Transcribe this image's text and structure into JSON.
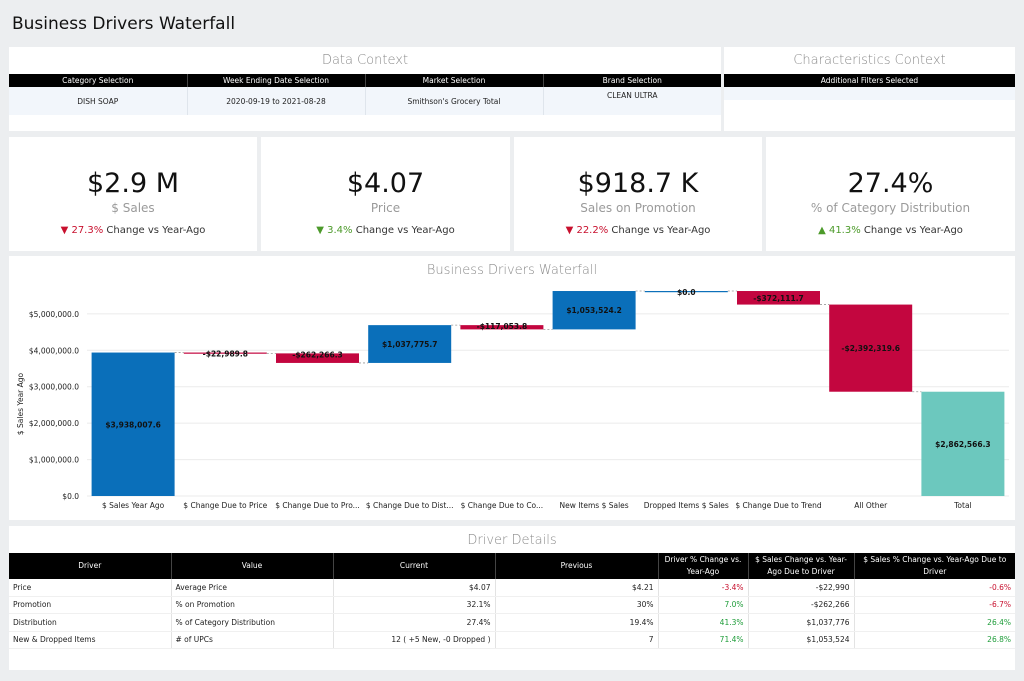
{
  "page": {
    "title": "Business Drivers Waterfall"
  },
  "data_context": {
    "title": "Data Context",
    "headers": [
      "Category Selection",
      "Week Ending Date Selection",
      "Market Selection",
      "Brand Selection"
    ],
    "values": [
      "DISH SOAP",
      "2020-09-19 to 2021-08-28",
      "Smithson's Grocery Total",
      "CLEAN ULTRA"
    ]
  },
  "characteristics_context": {
    "title": "Characteristics Context",
    "header": "Additional Filters Selected"
  },
  "kpis": [
    {
      "value": "$2.9 M",
      "label": "$ Sales",
      "arrow": "▼",
      "change": "27.3%",
      "suffix": " Change vs Year-Ago",
      "direction": "down"
    },
    {
      "value": "$4.07",
      "label": "Price",
      "arrow": "▼",
      "change": "3.4%",
      "suffix": " Change vs Year-Ago",
      "direction": "up"
    },
    {
      "value": "$918.7 K",
      "label": "Sales on Promotion",
      "arrow": "▼",
      "change": "22.2%",
      "suffix": " Change vs Year-Ago",
      "direction": "down"
    },
    {
      "value": "27.4%",
      "label": "% of Category Distribution",
      "arrow": "▲",
      "change": "41.3%",
      "suffix": " Change vs Year-Ago",
      "direction": "up"
    }
  ],
  "colors": {
    "increase": "#0a6fba",
    "decrease": "#c3063f",
    "total": "#6cc8be",
    "down_text": "#c8102e",
    "up_text": "#4c9a2a"
  },
  "chart_data": {
    "type": "bar",
    "subtype": "waterfall",
    "title": "Business Drivers Waterfall",
    "ylabel": "$ Sales Year Ago",
    "ylim": [
      0,
      5600000
    ],
    "ytick_values": [
      0,
      1000000,
      2000000,
      3000000,
      4000000,
      5000000
    ],
    "ytick_labels": [
      "$0.0",
      "$1,000,000.0",
      "$2,000,000.0",
      "$3,000,000.0",
      "$4,000,000.0",
      "$5,000,000.0"
    ],
    "categories": [
      "$ Sales Year Ago",
      "$ Change Due to Price",
      "$ Change Due to Pro...",
      "$ Change Due to Dist...",
      "$ Change Due to Co...",
      "New Items $ Sales",
      "Dropped Items $ Sales",
      "$ Change Due to Trend",
      "All Other",
      "Total"
    ],
    "values": [
      3938007.6,
      -22989.8,
      -262266.3,
      1037775.7,
      -117053.8,
      1053524.2,
      0.0,
      -372111.7,
      -2392319.6,
      2862566.3
    ],
    "value_labels": [
      "$3,938,007.6",
      "-$22,989.8",
      "-$262,266.3",
      "$1,037,775.7",
      "-$117,053.8",
      "$1,053,524.2",
      "$0.0",
      "-$372,111.7",
      "-$2,392,319.6",
      "$2,862,566.3"
    ],
    "kinds": [
      "total",
      "change",
      "change",
      "change",
      "change",
      "change",
      "change",
      "change",
      "change",
      "total"
    ],
    "grid": true
  },
  "driver_details": {
    "title": "Driver Details",
    "headers": [
      "Driver",
      "Value",
      "Current",
      "Previous",
      "Driver % Change vs. Year-Ago",
      "$ Sales Change vs. Year-Ago Due to Driver",
      "$ Sales % Change vs. Year-Ago Due to Driver"
    ],
    "rows": [
      {
        "driver": "Price",
        "value": "Average Price",
        "current": "$4.07",
        "previous": "$4.21",
        "pct": "-3.4%",
        "pct_sign": "neg",
        "sales_change": "-$22,990",
        "sales_pct": "-0.6%",
        "sales_pct_sign": "neg"
      },
      {
        "driver": "Promotion",
        "value": "% on Promotion",
        "current": "32.1%",
        "previous": "30%",
        "pct": "7.0%",
        "pct_sign": "pos",
        "sales_change": "-$262,266",
        "sales_pct": "-6.7%",
        "sales_pct_sign": "neg"
      },
      {
        "driver": "Distribution",
        "value": "% of Category Distribution",
        "current": "27.4%",
        "previous": "19.4%",
        "pct": "41.3%",
        "pct_sign": "pos",
        "sales_change": "$1,037,776",
        "sales_pct": "26.4%",
        "sales_pct_sign": "pos"
      },
      {
        "driver": "New & Dropped Items",
        "value": "# of UPCs",
        "current": "12 ( +5 New, -0 Dropped )",
        "previous": "7",
        "pct": "71.4%",
        "pct_sign": "pos",
        "sales_change": "$1,053,524",
        "sales_pct": "26.8%",
        "sales_pct_sign": "pos"
      }
    ]
  }
}
